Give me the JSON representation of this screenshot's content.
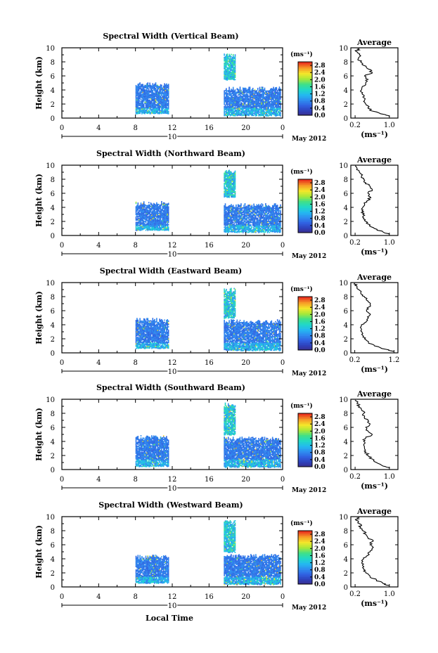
{
  "chart_data": [
    {
      "type": "heatmap",
      "title": "Spectral Width (Vertical Beam)",
      "ylabel": "Height (km)",
      "xlim": [
        0,
        24
      ],
      "ylim": [
        0,
        10
      ],
      "x_ticks": [
        "0",
        "4",
        "8",
        "12",
        "16",
        "20",
        "0"
      ],
      "y_ticks": [
        "0",
        "2",
        "4",
        "6",
        "8",
        "10"
      ],
      "date_label": "May 2012",
      "day_label": "10",
      "colorbar": {
        "unit": "(ms⁻¹)",
        "ticks": [
          "0.0",
          "0.4",
          "0.8",
          "1.2",
          "1.6",
          "2.0",
          "2.4",
          "2.8"
        ],
        "range": [
          0,
          3.0
        ]
      },
      "coverage": [
        {
          "x_range": [
            8.0,
            11.6
          ],
          "height_range": [
            0.7,
            4.8
          ]
        },
        {
          "x_range": [
            17.6,
            23.8
          ],
          "height_range": [
            0.4,
            4.2
          ]
        },
        {
          "x_range": [
            17.6,
            18.8
          ],
          "height_range": [
            5.5,
            9.0
          ]
        }
      ],
      "average": {
        "title": "Average",
        "xlabel": "(ms⁻¹)",
        "x_ticks": [
          "0.2",
          "1.0"
        ],
        "xlim": [
          0.1,
          1.2
        ],
        "ylim": [
          0,
          10
        ],
        "heights": [
          0.2,
          0.5,
          1,
          1.5,
          2,
          2.5,
          3,
          3.5,
          4,
          4.5,
          5,
          5.5,
          6,
          6.5,
          7,
          7.5,
          8,
          8.5,
          9,
          9.5,
          9.9
        ],
        "values": [
          1.0,
          0.9,
          0.6,
          0.5,
          0.45,
          0.42,
          0.38,
          0.36,
          0.35,
          0.37,
          0.45,
          0.5,
          0.42,
          0.6,
          0.5,
          0.4,
          0.33,
          0.28,
          0.3,
          0.22,
          0.3
        ]
      }
    },
    {
      "type": "heatmap",
      "title": "Spectral Width (Northward Beam)",
      "ylabel": "Height (km)",
      "xlim": [
        0,
        24
      ],
      "ylim": [
        0,
        10
      ],
      "x_ticks": [
        "0",
        "4",
        "8",
        "12",
        "16",
        "20",
        "0"
      ],
      "y_ticks": [
        "0",
        "2",
        "4",
        "6",
        "8",
        "10"
      ],
      "date_label": "May 2012",
      "day_label": "10",
      "colorbar": {
        "unit": "(ms⁻¹)",
        "ticks": [
          "0.0",
          "0.4",
          "0.8",
          "1.2",
          "1.6",
          "2.0",
          "2.4",
          "2.8"
        ],
        "range": [
          0,
          3.0
        ]
      },
      "coverage": [
        {
          "x_range": [
            8.0,
            11.6
          ],
          "height_range": [
            0.8,
            4.6
          ]
        },
        {
          "x_range": [
            17.6,
            23.8
          ],
          "height_range": [
            0.5,
            4.3
          ]
        },
        {
          "x_range": [
            17.6,
            18.8
          ],
          "height_range": [
            5.5,
            9.2
          ]
        }
      ],
      "average": {
        "title": "Average",
        "xlabel": "(ms⁻¹)",
        "x_ticks": [
          "0.2",
          "1.0"
        ],
        "xlim": [
          0.1,
          1.2
        ],
        "ylim": [
          0,
          10
        ],
        "heights": [
          0.2,
          0.5,
          1,
          1.5,
          2,
          2.5,
          3,
          3.5,
          4,
          4.5,
          5,
          5.5,
          6,
          6.5,
          7,
          7.5,
          8,
          8.5,
          9,
          9.5,
          9.9
        ],
        "values": [
          1.0,
          0.85,
          0.65,
          0.55,
          0.45,
          0.4,
          0.38,
          0.36,
          0.38,
          0.42,
          0.5,
          0.55,
          0.5,
          0.6,
          0.55,
          0.45,
          0.4,
          0.35,
          0.3,
          0.25,
          0.2
        ]
      }
    },
    {
      "type": "heatmap",
      "title": "Spectral Width (Eastward Beam)",
      "ylabel": "Height (km)",
      "xlim": [
        0,
        24
      ],
      "ylim": [
        0,
        10
      ],
      "x_ticks": [
        "0",
        "4",
        "8",
        "12",
        "16",
        "20",
        "0"
      ],
      "y_ticks": [
        "0",
        "2",
        "4",
        "6",
        "8",
        "10"
      ],
      "date_label": "May 2012",
      "day_label": "10",
      "colorbar": {
        "unit": "(ms⁻¹)",
        "ticks": [
          "0.0",
          "0.4",
          "0.8",
          "1.2",
          "1.6",
          "2.0",
          "2.4",
          "2.8"
        ],
        "range": [
          0,
          3.0
        ]
      },
      "coverage": [
        {
          "x_range": [
            8.0,
            11.6
          ],
          "height_range": [
            0.7,
            4.7
          ]
        },
        {
          "x_range": [
            17.6,
            23.8
          ],
          "height_range": [
            0.4,
            4.5
          ]
        },
        {
          "x_range": [
            17.6,
            18.8
          ],
          "height_range": [
            5.0,
            9.0
          ]
        }
      ],
      "average": {
        "title": "Average",
        "xlabel": "(ms⁻¹)",
        "x_ticks": [
          "0.2",
          "1.2"
        ],
        "xlim": [
          0.1,
          1.3
        ],
        "ylim": [
          0,
          10
        ],
        "heights": [
          0.2,
          0.5,
          1,
          1.5,
          2,
          2.5,
          3,
          3.5,
          4,
          4.5,
          5,
          5.5,
          6,
          6.5,
          7,
          7.5,
          8,
          8.5,
          9,
          9.5,
          9.9
        ],
        "values": [
          1.2,
          1.0,
          0.7,
          0.55,
          0.45,
          0.4,
          0.38,
          0.36,
          0.37,
          0.5,
          0.55,
          0.6,
          0.5,
          0.55,
          0.6,
          0.5,
          0.45,
          0.35,
          0.3,
          0.25,
          0.2
        ]
      }
    },
    {
      "type": "heatmap",
      "title": "Spectral Width (Southward Beam)",
      "ylabel": "Height (km)",
      "xlim": [
        0,
        24
      ],
      "ylim": [
        0,
        10
      ],
      "x_ticks": [
        "0",
        "4",
        "8",
        "12",
        "16",
        "20",
        "0"
      ],
      "y_ticks": [
        "0",
        "2",
        "4",
        "6",
        "8",
        "10"
      ],
      "date_label": "May 2012",
      "day_label": "10",
      "colorbar": {
        "unit": "(ms⁻¹)",
        "ticks": [
          "0.0",
          "0.4",
          "0.8",
          "1.2",
          "1.6",
          "2.0",
          "2.4",
          "2.8"
        ],
        "range": [
          0,
          3.0
        ]
      },
      "coverage": [
        {
          "x_range": [
            8.0,
            11.6
          ],
          "height_range": [
            0.5,
            4.6
          ]
        },
        {
          "x_range": [
            17.6,
            23.8
          ],
          "height_range": [
            0.4,
            4.4
          ]
        },
        {
          "x_range": [
            17.6,
            18.8
          ],
          "height_range": [
            5.0,
            9.3
          ]
        }
      ],
      "average": {
        "title": "Average",
        "xlabel": "(ms⁻¹)",
        "x_ticks": [
          "0.2",
          "1.0"
        ],
        "xlim": [
          0.1,
          1.2
        ],
        "ylim": [
          0,
          10
        ],
        "heights": [
          0.2,
          0.5,
          1,
          1.5,
          2,
          2.5,
          3,
          3.5,
          4,
          4.5,
          5,
          5.5,
          6,
          6.5,
          7,
          7.5,
          8,
          8.5,
          9,
          9.5,
          9.9
        ],
        "values": [
          1.0,
          0.85,
          0.7,
          0.6,
          0.5,
          0.45,
          0.42,
          0.4,
          0.4,
          0.45,
          0.6,
          0.5,
          0.45,
          0.55,
          0.5,
          0.42,
          0.4,
          0.35,
          0.3,
          0.25,
          0.2
        ]
      }
    },
    {
      "type": "heatmap",
      "title": "Spectral Width (Westward Beam)",
      "ylabel": "Height (km)",
      "xlim": [
        0,
        24
      ],
      "ylim": [
        0,
        10
      ],
      "x_ticks": [
        "0",
        "4",
        "8",
        "12",
        "16",
        "20",
        "0"
      ],
      "y_ticks": [
        "0",
        "2",
        "4",
        "6",
        "8",
        "10"
      ],
      "date_label": "May 2012",
      "day_label": "10",
      "xlabel": "Local Time",
      "colorbar": {
        "unit": "(ms⁻¹)",
        "ticks": [
          "0.0",
          "0.4",
          "0.8",
          "1.2",
          "1.6",
          "2.0",
          "2.4",
          "2.8"
        ],
        "range": [
          0,
          3.0
        ]
      },
      "coverage": [
        {
          "x_range": [
            8.0,
            11.6
          ],
          "height_range": [
            0.6,
            4.3
          ]
        },
        {
          "x_range": [
            17.6,
            23.8
          ],
          "height_range": [
            0.4,
            4.4
          ]
        },
        {
          "x_range": [
            17.6,
            18.8
          ],
          "height_range": [
            5.0,
            9.2
          ]
        }
      ],
      "average": {
        "title": "Average",
        "xlabel": "(ms⁻¹)",
        "x_ticks": [
          "0.2",
          "1.0"
        ],
        "xlim": [
          0.1,
          1.2
        ],
        "ylim": [
          0,
          10
        ],
        "heights": [
          0.2,
          0.5,
          1,
          1.5,
          2,
          2.5,
          3,
          3.5,
          4,
          4.5,
          5,
          5.5,
          6,
          6.5,
          7,
          7.5,
          8,
          8.5,
          9,
          9.5,
          9.9
        ],
        "values": [
          1.0,
          0.85,
          0.7,
          0.55,
          0.45,
          0.4,
          0.38,
          0.36,
          0.4,
          0.5,
          0.55,
          0.6,
          0.55,
          0.62,
          0.5,
          0.45,
          0.38,
          0.33,
          0.3,
          0.22,
          0.3
        ]
      }
    }
  ]
}
